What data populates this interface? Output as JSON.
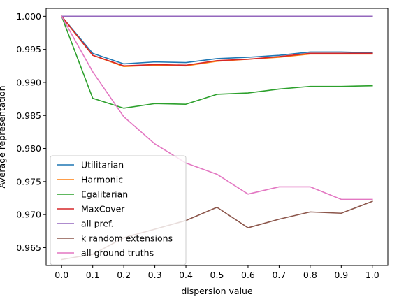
{
  "chart_data": {
    "type": "line",
    "title": "",
    "xlabel": "dispersion value",
    "ylabel": "Average representation",
    "xlim": [
      -0.05,
      1.05
    ],
    "ylim": [
      0.9623,
      1.0012
    ],
    "x_ticks": [
      0.0,
      0.1,
      0.2,
      0.3,
      0.4,
      0.5,
      0.6,
      0.7,
      0.8,
      0.9,
      1.0
    ],
    "x_tick_labels": [
      "0.0",
      "0.1",
      "0.2",
      "0.3",
      "0.4",
      "0.5",
      "0.6",
      "0.7",
      "0.8",
      "0.9",
      "1.0"
    ],
    "y_ticks": [
      0.965,
      0.97,
      0.975,
      0.98,
      0.985,
      0.99,
      0.995,
      1.0
    ],
    "y_tick_labels": [
      "0.965",
      "0.970",
      "0.975",
      "0.980",
      "0.985",
      "0.990",
      "0.995",
      "1.000"
    ],
    "grid": false,
    "legend_position": "lower-left",
    "x": [
      0.0,
      0.1,
      0.2,
      0.3,
      0.4,
      0.5,
      0.6,
      0.7,
      0.8,
      0.9,
      1.0
    ],
    "series": [
      {
        "name": "Utilitarian",
        "color": "#1f77b4",
        "values": [
          1.0,
          0.9944,
          0.9928,
          0.9931,
          0.993,
          0.9936,
          0.9938,
          0.9941,
          0.9946,
          0.9946,
          0.9945
        ]
      },
      {
        "name": "Harmonic",
        "color": "#ff7f0e",
        "values": [
          1.0,
          0.9941,
          0.9924,
          0.9926,
          0.9925,
          0.9932,
          0.9935,
          0.9938,
          0.9943,
          0.9943,
          0.9943
        ]
      },
      {
        "name": "Egalitarian",
        "color": "#2ca02c",
        "values": [
          1.0,
          0.9876,
          0.9861,
          0.9868,
          0.9867,
          0.9882,
          0.9884,
          0.989,
          0.9894,
          0.9894,
          0.9895
        ]
      },
      {
        "name": "MaxCover",
        "color": "#d62728",
        "values": [
          1.0,
          0.9941,
          0.9925,
          0.9927,
          0.9926,
          0.9933,
          0.9935,
          0.9939,
          0.9944,
          0.9944,
          0.9944
        ]
      },
      {
        "name": "all pref.",
        "color": "#9467bd",
        "values": [
          1.0,
          1.0,
          1.0,
          1.0,
          1.0,
          1.0,
          1.0,
          1.0,
          1.0,
          1.0,
          1.0
        ]
      },
      {
        "name": "k random extensions",
        "color": "#8c564b",
        "values": [
          0.9632,
          0.964,
          0.9665,
          0.9678,
          0.9691,
          0.9711,
          0.968,
          0.9693,
          0.9704,
          0.9702,
          0.972
        ]
      },
      {
        "name": "all ground truths",
        "color": "#e377c2",
        "values": [
          1.0,
          0.9916,
          0.9848,
          0.9807,
          0.9778,
          0.9761,
          0.9731,
          0.9742,
          0.9742,
          0.9723,
          0.9723
        ]
      }
    ]
  }
}
